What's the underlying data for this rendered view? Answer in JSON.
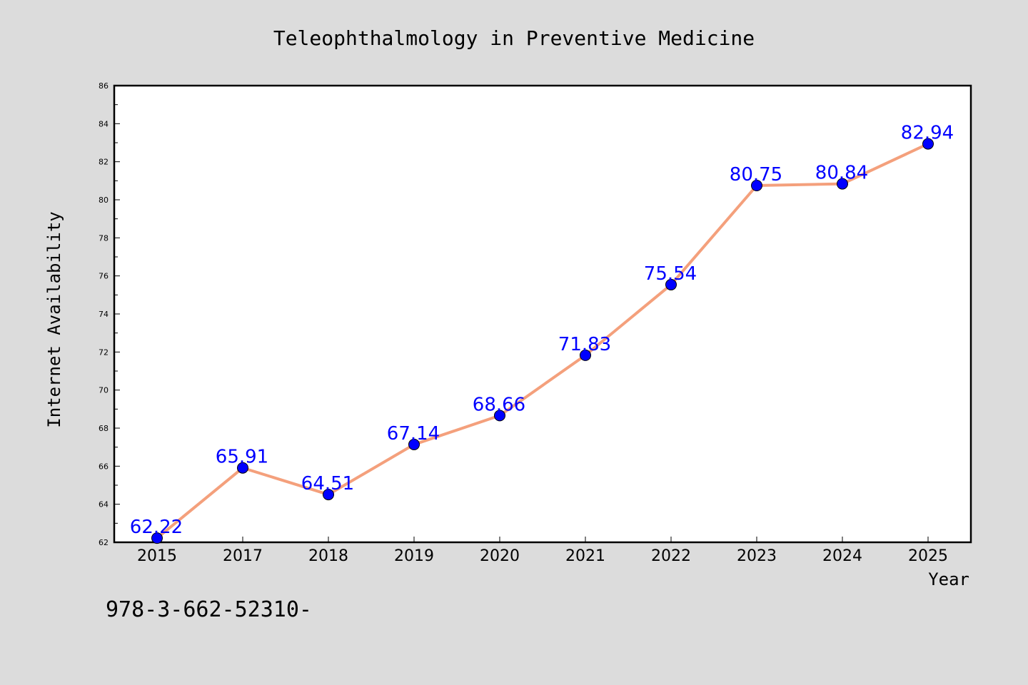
{
  "footnote": "978-3-662-52310-",
  "chart_data": {
    "type": "line",
    "title": "Teleophthalmology in Preventive Medicine",
    "xlabel": "Year",
    "ylabel": "Internet Availability",
    "categories": [
      "2015",
      "2017",
      "2018",
      "2019",
      "2020",
      "2021",
      "2022",
      "2023",
      "2024",
      "2025"
    ],
    "values": [
      62.22,
      65.91,
      64.51,
      67.14,
      68.66,
      71.83,
      75.54,
      80.75,
      80.84,
      82.94
    ],
    "data_labels": [
      "62.22",
      "65.91",
      "64.51",
      "67.14",
      "68.66",
      "71.83",
      "75.54",
      "80.75",
      "80.84",
      "82.94"
    ],
    "ylim": [
      62,
      86
    ],
    "yticks": [
      "62",
      "64",
      "66",
      "68",
      "70",
      "72",
      "74",
      "76",
      "78",
      "80",
      "82",
      "84",
      "86"
    ],
    "grid": false,
    "line_color": "#f4a07c",
    "marker_color": "#0000ff",
    "label_color": "#0000ff"
  }
}
